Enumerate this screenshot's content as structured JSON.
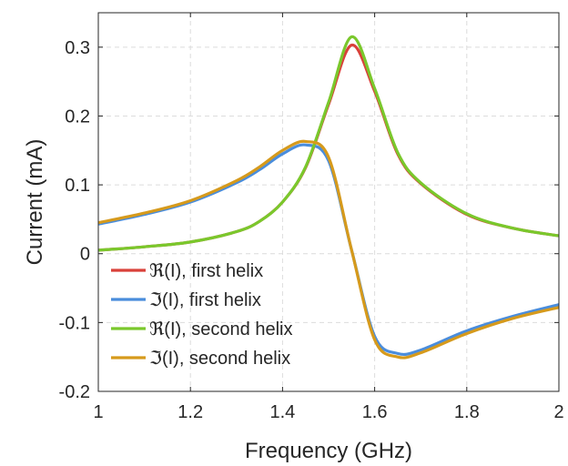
{
  "chart_data": {
    "type": "line",
    "title": "",
    "xlabel": "Frequency (GHz)",
    "ylabel": "Current (mA)",
    "xlim": [
      1,
      2
    ],
    "ylim": [
      -0.2,
      0.35
    ],
    "xticks": [
      1,
      1.2,
      1.4,
      1.6,
      1.8,
      2
    ],
    "xtick_labels": [
      "1",
      "1.2",
      "1.4",
      "1.6",
      "1.8",
      "2"
    ],
    "yticks": [
      -0.2,
      -0.1,
      0,
      0.1,
      0.2,
      0.3
    ],
    "ytick_labels": [
      "-0.2",
      "-0.1",
      "0",
      "0.1",
      "0.2",
      "0.3"
    ],
    "grid": true,
    "legend_position": "bottom-left",
    "x": [
      1.0,
      1.1,
      1.2,
      1.3,
      1.35,
      1.4,
      1.45,
      1.5,
      1.55,
      1.6,
      1.65,
      1.7,
      1.8,
      1.9,
      2.0
    ],
    "series": [
      {
        "name": "ℜ(I), first helix",
        "color": "#d9413a",
        "values": [
          0.005,
          0.01,
          0.017,
          0.032,
          0.047,
          0.075,
          0.125,
          0.217,
          0.303,
          0.236,
          0.145,
          0.102,
          0.057,
          0.037,
          0.026
        ]
      },
      {
        "name": "ℑ(I), first helix",
        "color": "#4a8ddc",
        "values": [
          0.043,
          0.057,
          0.075,
          0.103,
          0.122,
          0.145,
          0.158,
          0.135,
          0.005,
          -0.12,
          -0.145,
          -0.14,
          -0.112,
          -0.091,
          -0.074
        ]
      },
      {
        "name": "ℜ(I), second helix",
        "color": "#7ac82c",
        "values": [
          0.005,
          0.01,
          0.017,
          0.032,
          0.047,
          0.075,
          0.126,
          0.22,
          0.315,
          0.24,
          0.147,
          0.103,
          0.058,
          0.037,
          0.026
        ]
      },
      {
        "name": "ℑ(I), second helix",
        "color": "#d69a1c",
        "values": [
          0.045,
          0.059,
          0.077,
          0.106,
          0.126,
          0.15,
          0.163,
          0.14,
          0.005,
          -0.125,
          -0.15,
          -0.144,
          -0.116,
          -0.094,
          -0.078
        ]
      }
    ]
  }
}
